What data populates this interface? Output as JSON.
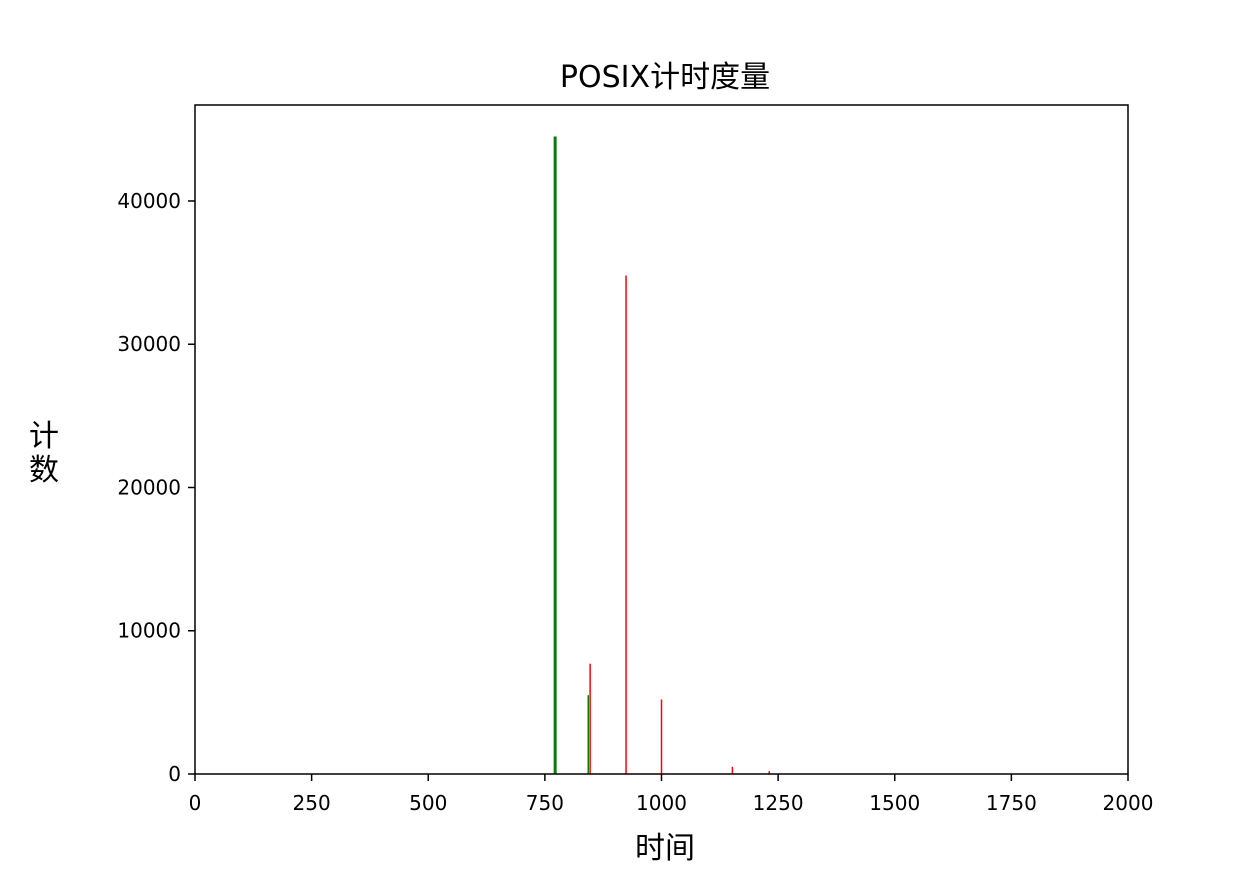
{
  "chart_data": {
    "type": "bar",
    "title": "POSIX计时度量",
    "xlabel": "时间",
    "ylabel": "计数",
    "xlim": [
      0,
      2000
    ],
    "ylim": [
      0,
      46700
    ],
    "xticks": [
      0,
      250,
      500,
      750,
      1000,
      1250,
      1500,
      1750,
      2000
    ],
    "yticks": [
      0,
      10000,
      20000,
      30000,
      40000
    ],
    "grid": false,
    "series": [
      {
        "color": "#008000",
        "points": [
          {
            "x": 772,
            "y": 44500
          },
          {
            "x": 843,
            "y": 5500
          }
        ]
      },
      {
        "color": "#ff0000",
        "points": [
          {
            "x": 847,
            "y": 7700
          },
          {
            "x": 924,
            "y": 34800
          },
          {
            "x": 1000,
            "y": 5200
          },
          {
            "x": 1152,
            "y": 500
          },
          {
            "x": 1231,
            "y": 200
          }
        ]
      }
    ]
  }
}
